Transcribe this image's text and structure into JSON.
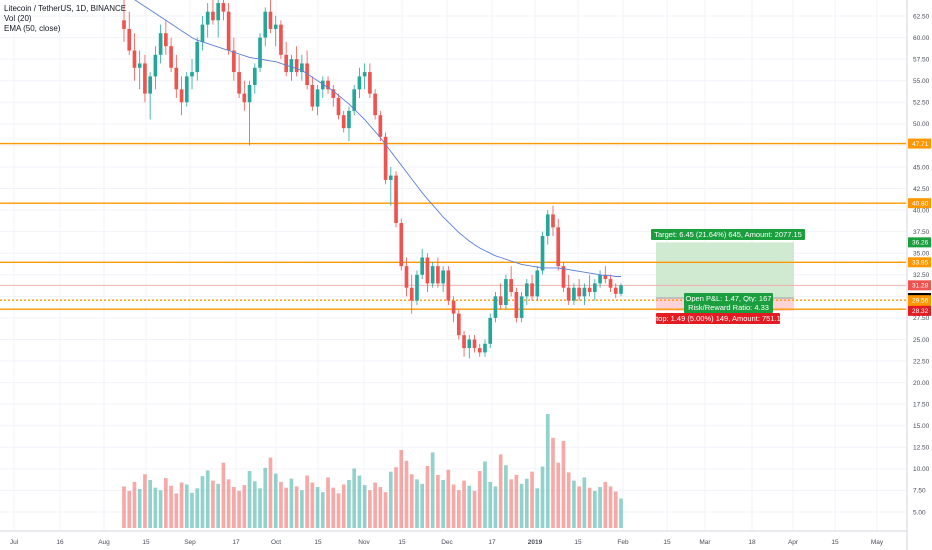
{
  "legend": {
    "title": "Litecoin / TetherUS, 1D, BINANCE",
    "vol": "Vol (20)",
    "ema": "EMA (50, close)"
  },
  "colors": {
    "up": "#26a69a",
    "down": "#ef5350",
    "level_line": "#ff9800",
    "ema_line": "#5b7fd6",
    "target_zone": "#c8e6c9",
    "stop_zone": "#ffcdd2",
    "target_label": "#1b9e3e",
    "stop_label": "#e31b23",
    "last_price": "#000000",
    "axis_text": "#4a4e5a"
  },
  "chart_data": {
    "type": "candlestick",
    "title": "Litecoin / TetherUS, 1D, BINANCE",
    "ylim": [
      2.5,
      65.0
    ],
    "y_ticks": [
      "62.50",
      "60.00",
      "57.50",
      "55.00",
      "52.50",
      "50.00",
      "47.50",
      "45.00",
      "42.50",
      "40.00",
      "37.50",
      "35.00",
      "32.50",
      "30.00",
      "27.50",
      "25.00",
      "22.50",
      "20.00",
      "17.50",
      "15.00",
      "12.50",
      "10.00",
      "7.50",
      "5.00"
    ],
    "x_ticks": [
      "Jul",
      "16",
      "Aug",
      "15",
      "Sep",
      "17",
      "Oct",
      "15",
      "Nov",
      "15",
      "Dec",
      "17",
      "2019",
      "15",
      "Feb",
      "15",
      "Mar",
      "18",
      "Apr",
      "15",
      "May"
    ],
    "level_lines": [
      47.71,
      40.8,
      33.95,
      29.56,
      28.51
    ],
    "price_tags": [
      {
        "value": 47.71,
        "label": "47.71",
        "color": "#ff9800"
      },
      {
        "value": 40.8,
        "label": "40.80",
        "color": "#ff9800"
      },
      {
        "value": 36.26,
        "label": "36.26",
        "color": "#1b9e3e"
      },
      {
        "value": 33.95,
        "label": "33.95",
        "color": "#ff9800"
      },
      {
        "value": 31.28,
        "label": "31.28",
        "color": "#ef5350"
      },
      {
        "value": 29.81,
        "label": "29.81",
        "color": "#000000"
      },
      {
        "value": 29.56,
        "label": "29.56",
        "color": "#ff9800"
      },
      {
        "value": 28.51,
        "label": "28.51",
        "color": "#ff9800"
      },
      {
        "value": 28.32,
        "label": "28.32",
        "color": "#e31b23"
      }
    ],
    "position": {
      "entry": 29.81,
      "target": 36.26,
      "stop": 28.32,
      "target_label": "Target: 6.45 (21.64%) 645, Amount: 2077.15",
      "open_label": "Open P&L: 1.47, Qty: 167",
      "rr_label": "Risk/Reward Ratio: 4.33",
      "stop_label": "Stop: 1.49 (5.00%) 149, Amount: 751.17"
    },
    "candles_ohlc": [
      [
        62.0,
        65.0,
        59.5,
        61.0
      ],
      [
        61.0,
        63.0,
        58.0,
        58.5
      ],
      [
        58.5,
        60.5,
        55.0,
        56.5
      ],
      [
        56.5,
        58.5,
        54.0,
        57.0
      ],
      [
        57.0,
        58.0,
        52.5,
        53.5
      ],
      [
        53.5,
        56.0,
        50.5,
        55.5
      ],
      [
        55.5,
        59.0,
        54.0,
        58.0
      ],
      [
        58.0,
        61.5,
        57.0,
        60.5
      ],
      [
        60.5,
        62.0,
        58.0,
        59.0
      ],
      [
        59.0,
        60.0,
        56.0,
        56.5
      ],
      [
        56.5,
        58.0,
        53.0,
        54.0
      ],
      [
        54.0,
        55.5,
        51.0,
        52.5
      ],
      [
        52.5,
        56.0,
        52.0,
        55.5
      ],
      [
        55.5,
        57.5,
        54.0,
        56.0
      ],
      [
        56.0,
        60.0,
        55.0,
        59.5
      ],
      [
        59.5,
        62.5,
        58.5,
        61.5
      ],
      [
        61.5,
        64.0,
        60.0,
        63.0
      ],
      [
        63.0,
        65.0,
        61.5,
        62.0
      ],
      [
        62.0,
        64.5,
        60.0,
        64.0
      ],
      [
        64.0,
        65.0,
        62.0,
        63.0
      ],
      [
        63.0,
        64.0,
        58.0,
        58.5
      ],
      [
        58.5,
        60.0,
        55.0,
        56.0
      ],
      [
        56.0,
        58.0,
        53.0,
        53.5
      ],
      [
        53.5,
        55.0,
        51.5,
        52.5
      ],
      [
        52.5,
        55.0,
        47.5,
        54.5
      ],
      [
        54.5,
        57.0,
        53.5,
        56.5
      ],
      [
        56.5,
        60.5,
        56.0,
        60.0
      ],
      [
        60.0,
        63.5,
        59.0,
        63.0
      ],
      [
        63.0,
        64.5,
        60.5,
        61.0
      ],
      [
        61.0,
        62.5,
        59.0,
        61.5
      ],
      [
        61.5,
        62.0,
        57.5,
        58.0
      ],
      [
        58.0,
        59.5,
        55.5,
        56.0
      ],
      [
        56.0,
        58.0,
        55.0,
        57.5
      ],
      [
        57.5,
        59.0,
        55.5,
        56.0
      ],
      [
        56.0,
        58.0,
        55.0,
        57.0
      ],
      [
        57.0,
        58.5,
        54.0,
        54.5
      ],
      [
        54.5,
        55.5,
        51.5,
        52.0
      ],
      [
        52.0,
        54.5,
        51.0,
        54.0
      ],
      [
        54.0,
        55.5,
        53.0,
        55.0
      ],
      [
        55.0,
        55.5,
        53.5,
        54.0
      ],
      [
        54.0,
        54.5,
        52.0,
        53.0
      ],
      [
        53.0,
        53.5,
        50.5,
        51.0
      ],
      [
        51.0,
        51.5,
        49.0,
        49.5
      ],
      [
        49.5,
        52.0,
        48.0,
        51.5
      ],
      [
        51.5,
        54.5,
        51.0,
        54.0
      ],
      [
        54.0,
        56.5,
        53.0,
        55.5
      ],
      [
        55.5,
        57.0,
        54.0,
        56.0
      ],
      [
        56.0,
        57.0,
        53.0,
        53.5
      ],
      [
        53.5,
        54.0,
        50.5,
        51.0
      ],
      [
        51.0,
        51.5,
        48.0,
        48.5
      ],
      [
        48.5,
        49.0,
        43.0,
        43.5
      ],
      [
        43.5,
        45.0,
        40.5,
        44.0
      ],
      [
        44.0,
        44.5,
        38.0,
        38.5
      ],
      [
        38.5,
        39.0,
        33.0,
        33.5
      ],
      [
        33.5,
        34.5,
        30.0,
        31.0
      ],
      [
        31.0,
        32.5,
        28.0,
        29.5
      ],
      [
        29.5,
        33.0,
        29.0,
        32.5
      ],
      [
        32.5,
        35.5,
        32.0,
        34.5
      ],
      [
        34.5,
        35.0,
        30.5,
        31.5
      ],
      [
        31.5,
        34.0,
        31.0,
        33.5
      ],
      [
        33.5,
        34.5,
        31.0,
        31.5
      ],
      [
        31.5,
        33.5,
        30.5,
        33.0
      ],
      [
        33.0,
        33.5,
        29.0,
        29.5
      ],
      [
        29.5,
        30.0,
        27.0,
        28.0
      ],
      [
        28.0,
        28.5,
        25.0,
        25.5
      ],
      [
        25.5,
        26.0,
        23.0,
        24.0
      ],
      [
        24.0,
        25.5,
        22.8,
        25.0
      ],
      [
        25.0,
        25.5,
        23.5,
        24.0
      ],
      [
        24.0,
        24.5,
        23.0,
        23.5
      ],
      [
        23.5,
        25.0,
        23.0,
        24.5
      ],
      [
        24.5,
        28.0,
        24.0,
        27.5
      ],
      [
        27.5,
        30.5,
        27.0,
        30.0
      ],
      [
        30.0,
        31.5,
        28.5,
        29.0
      ],
      [
        29.0,
        32.5,
        28.5,
        32.0
      ],
      [
        32.0,
        33.5,
        30.0,
        30.5
      ],
      [
        30.5,
        31.0,
        27.0,
        27.5
      ],
      [
        27.5,
        30.5,
        27.0,
        30.0
      ],
      [
        30.0,
        32.0,
        29.0,
        31.5
      ],
      [
        31.5,
        32.5,
        29.5,
        30.0
      ],
      [
        30.0,
        33.5,
        29.5,
        33.0
      ],
      [
        33.0,
        37.5,
        32.5,
        37.0
      ],
      [
        37.0,
        40.0,
        36.0,
        39.5
      ],
      [
        39.5,
        40.5,
        37.0,
        38.0
      ],
      [
        38.0,
        39.0,
        33.0,
        33.5
      ],
      [
        33.5,
        34.0,
        30.5,
        31.0
      ],
      [
        31.0,
        32.5,
        29.0,
        29.5
      ],
      [
        29.5,
        31.5,
        29.0,
        31.0
      ],
      [
        31.0,
        32.0,
        29.5,
        30.0
      ],
      [
        30.0,
        31.5,
        29.0,
        31.0
      ],
      [
        31.0,
        32.5,
        30.0,
        30.5
      ],
      [
        30.5,
        32.0,
        29.5,
        31.5
      ],
      [
        31.5,
        33.0,
        31.0,
        32.5
      ],
      [
        32.5,
        33.5,
        31.5,
        32.0
      ],
      [
        32.0,
        32.5,
        30.5,
        31.0
      ],
      [
        31.0,
        31.5,
        29.8,
        30.3
      ],
      [
        30.3,
        31.5,
        30.0,
        31.28
      ]
    ],
    "ema_50": [
      65.0,
      64.8,
      64.4,
      64.0,
      63.6,
      63.2,
      62.8,
      62.4,
      62.0,
      61.6,
      61.2,
      60.8,
      60.4,
      60.0,
      59.7,
      59.5,
      59.3,
      59.1,
      58.9,
      58.7,
      58.5,
      58.3,
      58.1,
      57.9,
      57.7,
      57.6,
      57.5,
      57.4,
      57.3,
      57.2,
      57.0,
      56.8,
      56.6,
      56.4,
      56.2,
      55.8,
      55.4,
      55.0,
      54.6,
      54.2,
      53.8,
      53.3,
      52.8,
      52.3,
      51.7,
      51.1,
      50.5,
      49.8,
      49.1,
      48.4,
      47.6,
      46.8,
      46.0,
      45.2,
      44.4,
      43.6,
      42.8,
      42.0,
      41.3,
      40.6,
      39.9,
      39.2,
      38.6,
      38.0,
      37.4,
      36.9,
      36.4,
      36.0,
      35.6,
      35.3,
      35.0,
      34.7,
      34.5,
      34.3,
      34.1,
      33.9,
      33.7,
      33.6,
      33.5,
      33.4,
      33.3,
      33.3,
      33.3,
      33.3,
      33.2,
      33.1,
      33.0,
      32.9,
      32.8,
      32.7,
      32.6,
      32.5,
      32.4,
      32.4,
      32.3,
      32.3
    ],
    "volume": [
      6.5,
      5.8,
      7.2,
      6.1,
      8.4,
      7.5,
      6.3,
      5.9,
      7.8,
      6.6,
      5.4,
      7.1,
      6.8,
      5.5,
      6.2,
      8.1,
      9.0,
      7.4,
      6.9,
      10.2,
      7.6,
      6.4,
      5.8,
      6.7,
      8.9,
      7.3,
      6.2,
      9.4,
      11.0,
      8.5,
      7.2,
      6.3,
      7.7,
      6.5,
      5.9,
      8.2,
      7.1,
      6.4,
      5.6,
      7.9,
      6.3,
      5.4,
      6.8,
      7.5,
      9.3,
      8.2,
      6.7,
      5.9,
      7.1,
      6.4,
      5.6,
      8.8,
      9.5,
      12.2,
      10.5,
      8.4,
      7.6,
      6.9,
      9.7,
      11.8,
      8.3,
      7.5,
      9.1,
      6.8,
      5.9,
      7.4,
      6.6,
      5.8,
      8.9,
      10.4,
      7.2,
      6.5,
      11.5,
      9.8,
      7.6,
      8.3,
      6.9,
      7.7,
      8.8,
      6.2,
      9.6,
      17.8,
      14.1,
      10.2,
      13.6,
      8.7,
      7.4,
      6.5,
      7.9,
      6.3,
      5.8,
      6.4,
      7.2,
      6.5,
      5.7,
      4.6
    ],
    "volume_ylim": [
      0,
      20
    ]
  }
}
